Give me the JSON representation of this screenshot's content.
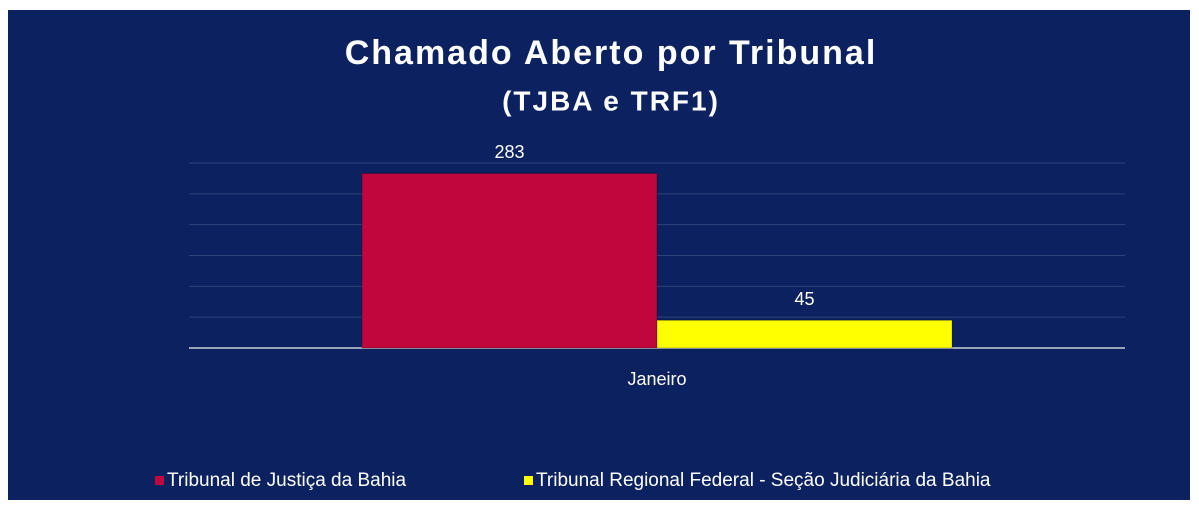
{
  "chart_data": {
    "type": "bar",
    "title": "Chamado Aberto por Tribunal",
    "subtitle": "(TJBA e TRF1)",
    "categories": [
      "Janeiro"
    ],
    "series": [
      {
        "name": "Tribunal de Justiça da Bahia",
        "color": "#c0063c",
        "values": [
          283
        ]
      },
      {
        "name": "Tribunal Regional Federal - Seção Judiciária da Bahia",
        "color": "#ffff00",
        "values": [
          45
        ]
      }
    ],
    "ylim": [
      0,
      300
    ],
    "yticks": [
      0,
      50,
      100,
      150,
      200,
      250,
      300
    ],
    "grid": true,
    "legend": "bottom"
  }
}
